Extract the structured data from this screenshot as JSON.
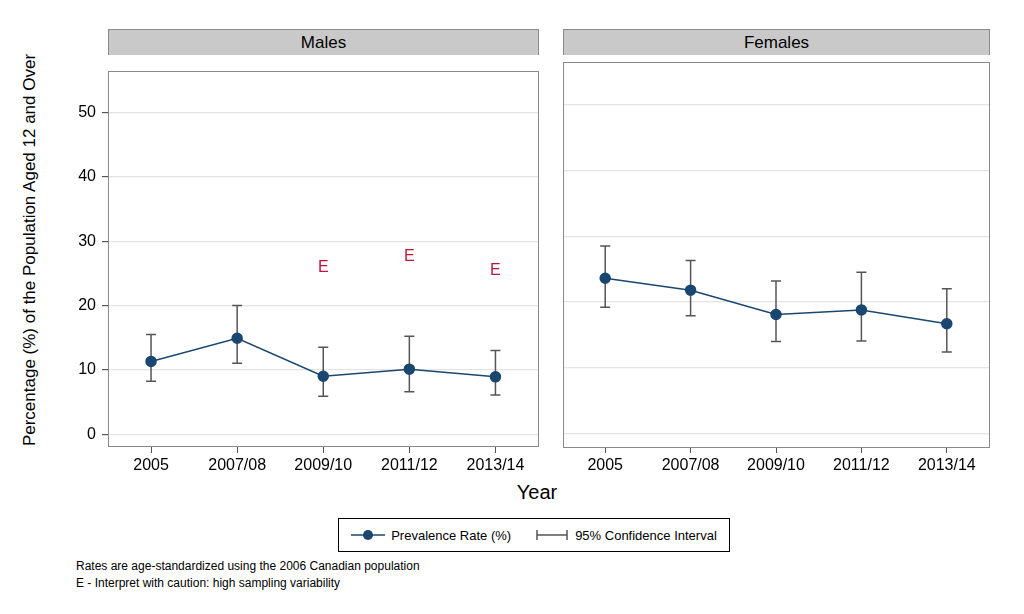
{
  "ylabel": "Percentage (%) of the Population Aged 12 and Over",
  "xlabel": "Year",
  "notes": [
    "Rates are age-standardized using the 2006 Canadian population",
    "E - Interpret with caution: high sampling variability"
  ],
  "chart_data": [
    {
      "type": "line",
      "title": "Males",
      "categories": [
        "2005",
        "2007/08",
        "2009/10",
        "2011/12",
        "2013/14"
      ],
      "series": [
        {
          "name": "Prevalence Rate (%)",
          "color": "#1a476f",
          "marker": "circle",
          "values": [
            11.3,
            14.9,
            9.0,
            10.1,
            8.9
          ],
          "ci_lower": [
            8.2,
            11.0,
            5.9,
            6.6,
            6.1
          ],
          "ci_upper": [
            15.5,
            20.0,
            13.5,
            15.2,
            13.0
          ],
          "ci_name": "95% Confidence Interval",
          "flags": [
            null,
            null,
            "E",
            "E",
            "E"
          ]
        }
      ],
      "ylim": [
        -2,
        56.5
      ],
      "yticks": [
        0,
        10,
        20,
        30,
        40,
        50
      ],
      "grid": true,
      "legend": "bottom"
    },
    {
      "type": "line",
      "title": "Females",
      "categories": [
        "2005",
        "2007/08",
        "2009/10",
        "2011/12",
        "2013/14"
      ],
      "series": [
        {
          "name": "Prevalence Rate (%)",
          "color": "#1a476f",
          "marker": "circle",
          "values": [
            23.6,
            21.8,
            18.1,
            18.8,
            16.7
          ],
          "ci_lower": [
            19.2,
            17.9,
            14.0,
            14.1,
            12.4
          ],
          "ci_upper": [
            28.5,
            26.3,
            23.2,
            24.5,
            22.0
          ],
          "ci_name": "95% Confidence Interval"
        }
      ],
      "ylim": [
        -2,
        56.5
      ],
      "yticks": [
        0,
        10,
        20,
        30,
        40,
        50
      ],
      "grid": true,
      "legend": "bottom",
      "tick_labels": "x"
    }
  ]
}
